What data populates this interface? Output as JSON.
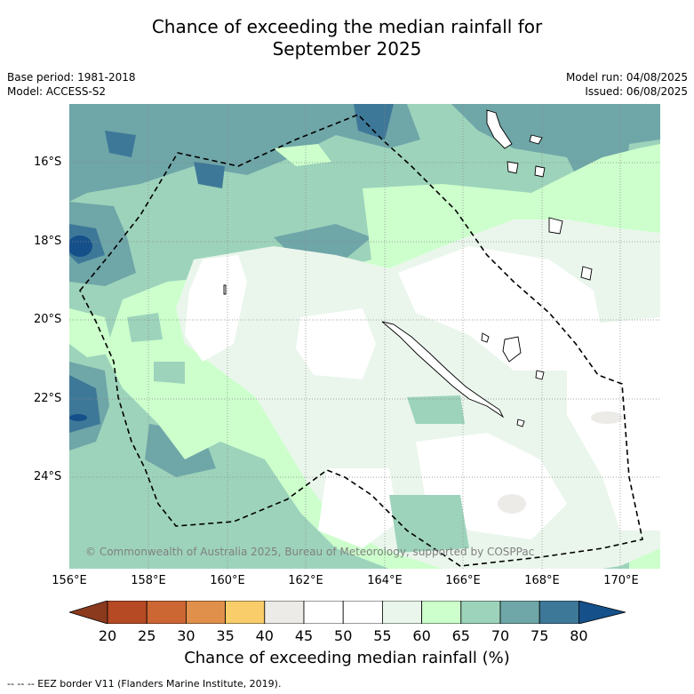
{
  "title_line1": "Chance of exceeding the median rainfall for",
  "title_line2": "September 2025",
  "base_period": "Base period: 1981-2018",
  "model": "Model: ACCESS-S2",
  "model_run": "Model run: 04/08/2025",
  "issued": "Issued: 06/08/2025",
  "copyright": "© Commonwealth of Australia 2025, Bureau of Meteorology, supported by COSPPac",
  "lat_ticks": [
    "16°S",
    "18°S",
    "20°S",
    "22°S",
    "24°S"
  ],
  "lon_ticks": [
    "156°E",
    "158°E",
    "160°E",
    "162°E",
    "164°E",
    "166°E",
    "168°E",
    "170°E"
  ],
  "colorbar": {
    "title": "Chance of exceeding median rainfall (%)",
    "labels": [
      "20",
      "25",
      "30",
      "35",
      "40",
      "45",
      "50",
      "55",
      "60",
      "65",
      "70",
      "75",
      "80"
    ],
    "colors": [
      "#8b3a1e",
      "#b54a24",
      "#cc6633",
      "#e0904a",
      "#f8cd6a",
      "#ecebe8",
      "#ffffff",
      "#ffffff",
      "#eaf6ec",
      "#ccffcc",
      "#9dd3bb",
      "#6fa6a8",
      "#3e7898",
      "#15508a"
    ]
  },
  "footer": "--  --  -- EEZ border V11 (Flanders Marine Institute, 2019).",
  "legend_colors": {
    "c45_50": "#ecebe8",
    "c50_60": "#ffffff",
    "c55_60": "#eaf6ec",
    "c60_65": "#ccffcc",
    "c65_70": "#9dd3bb",
    "c70_75": "#6fa6a8",
    "c75_80": "#3e7898",
    "c80": "#15508a"
  }
}
